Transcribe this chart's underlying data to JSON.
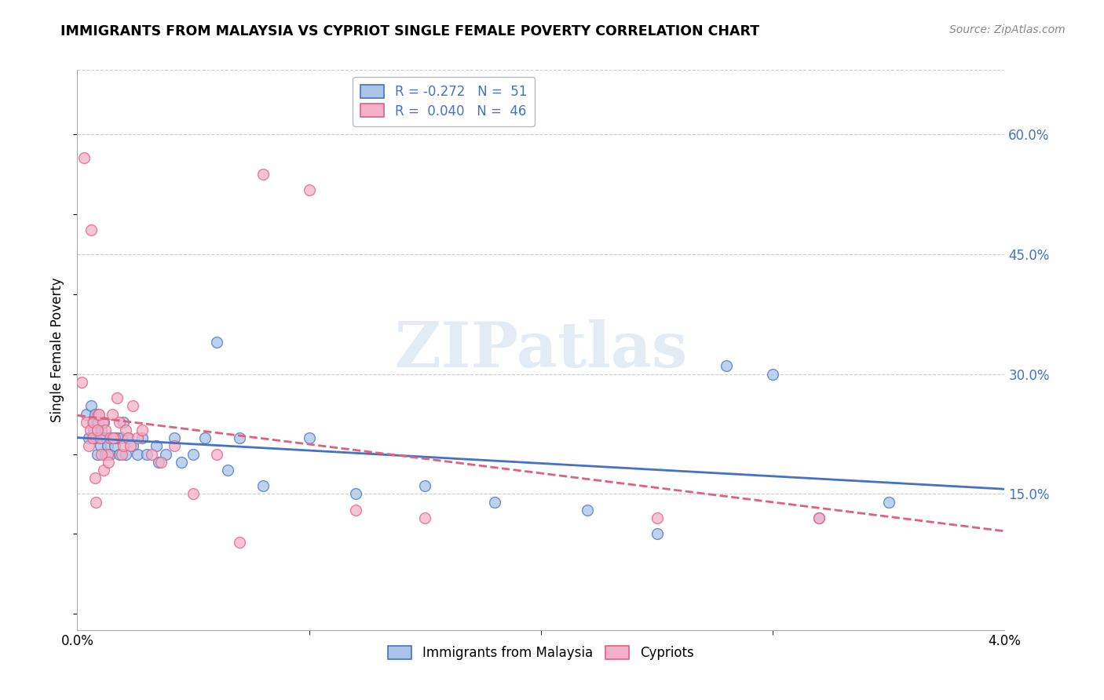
{
  "title": "IMMIGRANTS FROM MALAYSIA VS CYPRIOT SINGLE FEMALE POVERTY CORRELATION CHART",
  "source": "Source: ZipAtlas.com",
  "ylabel": "Single Female Poverty",
  "right_yticks": [
    "60.0%",
    "45.0%",
    "30.0%",
    "15.0%"
  ],
  "right_ytick_vals": [
    0.6,
    0.45,
    0.3,
    0.15
  ],
  "ylim": [
    -0.02,
    0.68
  ],
  "xlim": [
    0.0,
    0.04
  ],
  "series1_color": "#aac4e8",
  "series2_color": "#f4b0c8",
  "trend1_color": "#4472c4",
  "trend2_color": "#e06080",
  "background_color": "#ffffff",
  "grid_color": "#cccccc",
  "watermark": "ZIPatlas",
  "legend1_label": "R = -0.272   N =  51",
  "legend2_label": "R =  0.040   N =  46",
  "leg_bottom1": "Immigrants from Malaysia",
  "leg_bottom2": "Cypriots",
  "malaysia_x": [
    0.0004,
    0.0005,
    0.0006,
    0.00065,
    0.0007,
    0.00075,
    0.0008,
    0.00085,
    0.0009,
    0.00095,
    0.001,
    0.00105,
    0.0011,
    0.00115,
    0.0012,
    0.00125,
    0.0013,
    0.0014,
    0.0015,
    0.0016,
    0.0017,
    0.0018,
    0.0019,
    0.002,
    0.0021,
    0.0022,
    0.0024,
    0.0026,
    0.0028,
    0.003,
    0.0034,
    0.0038,
    0.0042,
    0.005,
    0.006,
    0.007,
    0.008,
    0.01,
    0.012,
    0.015,
    0.018,
    0.022,
    0.025,
    0.028,
    0.03,
    0.032,
    0.035,
    0.0055,
    0.0065,
    0.0045,
    0.0035
  ],
  "malaysia_y": [
    0.25,
    0.22,
    0.26,
    0.24,
    0.23,
    0.25,
    0.22,
    0.2,
    0.24,
    0.22,
    0.21,
    0.23,
    0.22,
    0.24,
    0.2,
    0.22,
    0.21,
    0.2,
    0.22,
    0.21,
    0.22,
    0.2,
    0.22,
    0.24,
    0.2,
    0.22,
    0.21,
    0.2,
    0.22,
    0.2,
    0.21,
    0.2,
    0.22,
    0.2,
    0.34,
    0.22,
    0.16,
    0.22,
    0.15,
    0.16,
    0.14,
    0.13,
    0.1,
    0.31,
    0.3,
    0.12,
    0.14,
    0.22,
    0.18,
    0.19,
    0.19
  ],
  "cypriot_x": [
    0.0002,
    0.0003,
    0.0004,
    0.0005,
    0.00055,
    0.0006,
    0.00065,
    0.0007,
    0.00075,
    0.0008,
    0.0009,
    0.001,
    0.0011,
    0.0012,
    0.0013,
    0.0014,
    0.0015,
    0.0016,
    0.0017,
    0.0018,
    0.0019,
    0.002,
    0.0021,
    0.0022,
    0.0024,
    0.0026,
    0.0028,
    0.0032,
    0.0036,
    0.0042,
    0.005,
    0.006,
    0.007,
    0.008,
    0.01,
    0.012,
    0.015,
    0.025,
    0.032,
    0.00085,
    0.00095,
    0.00105,
    0.00115,
    0.00135,
    0.00155,
    0.0023
  ],
  "cypriot_y": [
    0.29,
    0.57,
    0.24,
    0.21,
    0.23,
    0.48,
    0.22,
    0.24,
    0.17,
    0.14,
    0.25,
    0.22,
    0.24,
    0.23,
    0.2,
    0.22,
    0.25,
    0.22,
    0.27,
    0.24,
    0.2,
    0.21,
    0.23,
    0.22,
    0.26,
    0.22,
    0.23,
    0.2,
    0.19,
    0.21,
    0.15,
    0.2,
    0.09,
    0.55,
    0.53,
    0.13,
    0.12,
    0.12,
    0.12,
    0.23,
    0.25,
    0.2,
    0.18,
    0.19,
    0.22,
    0.21
  ]
}
